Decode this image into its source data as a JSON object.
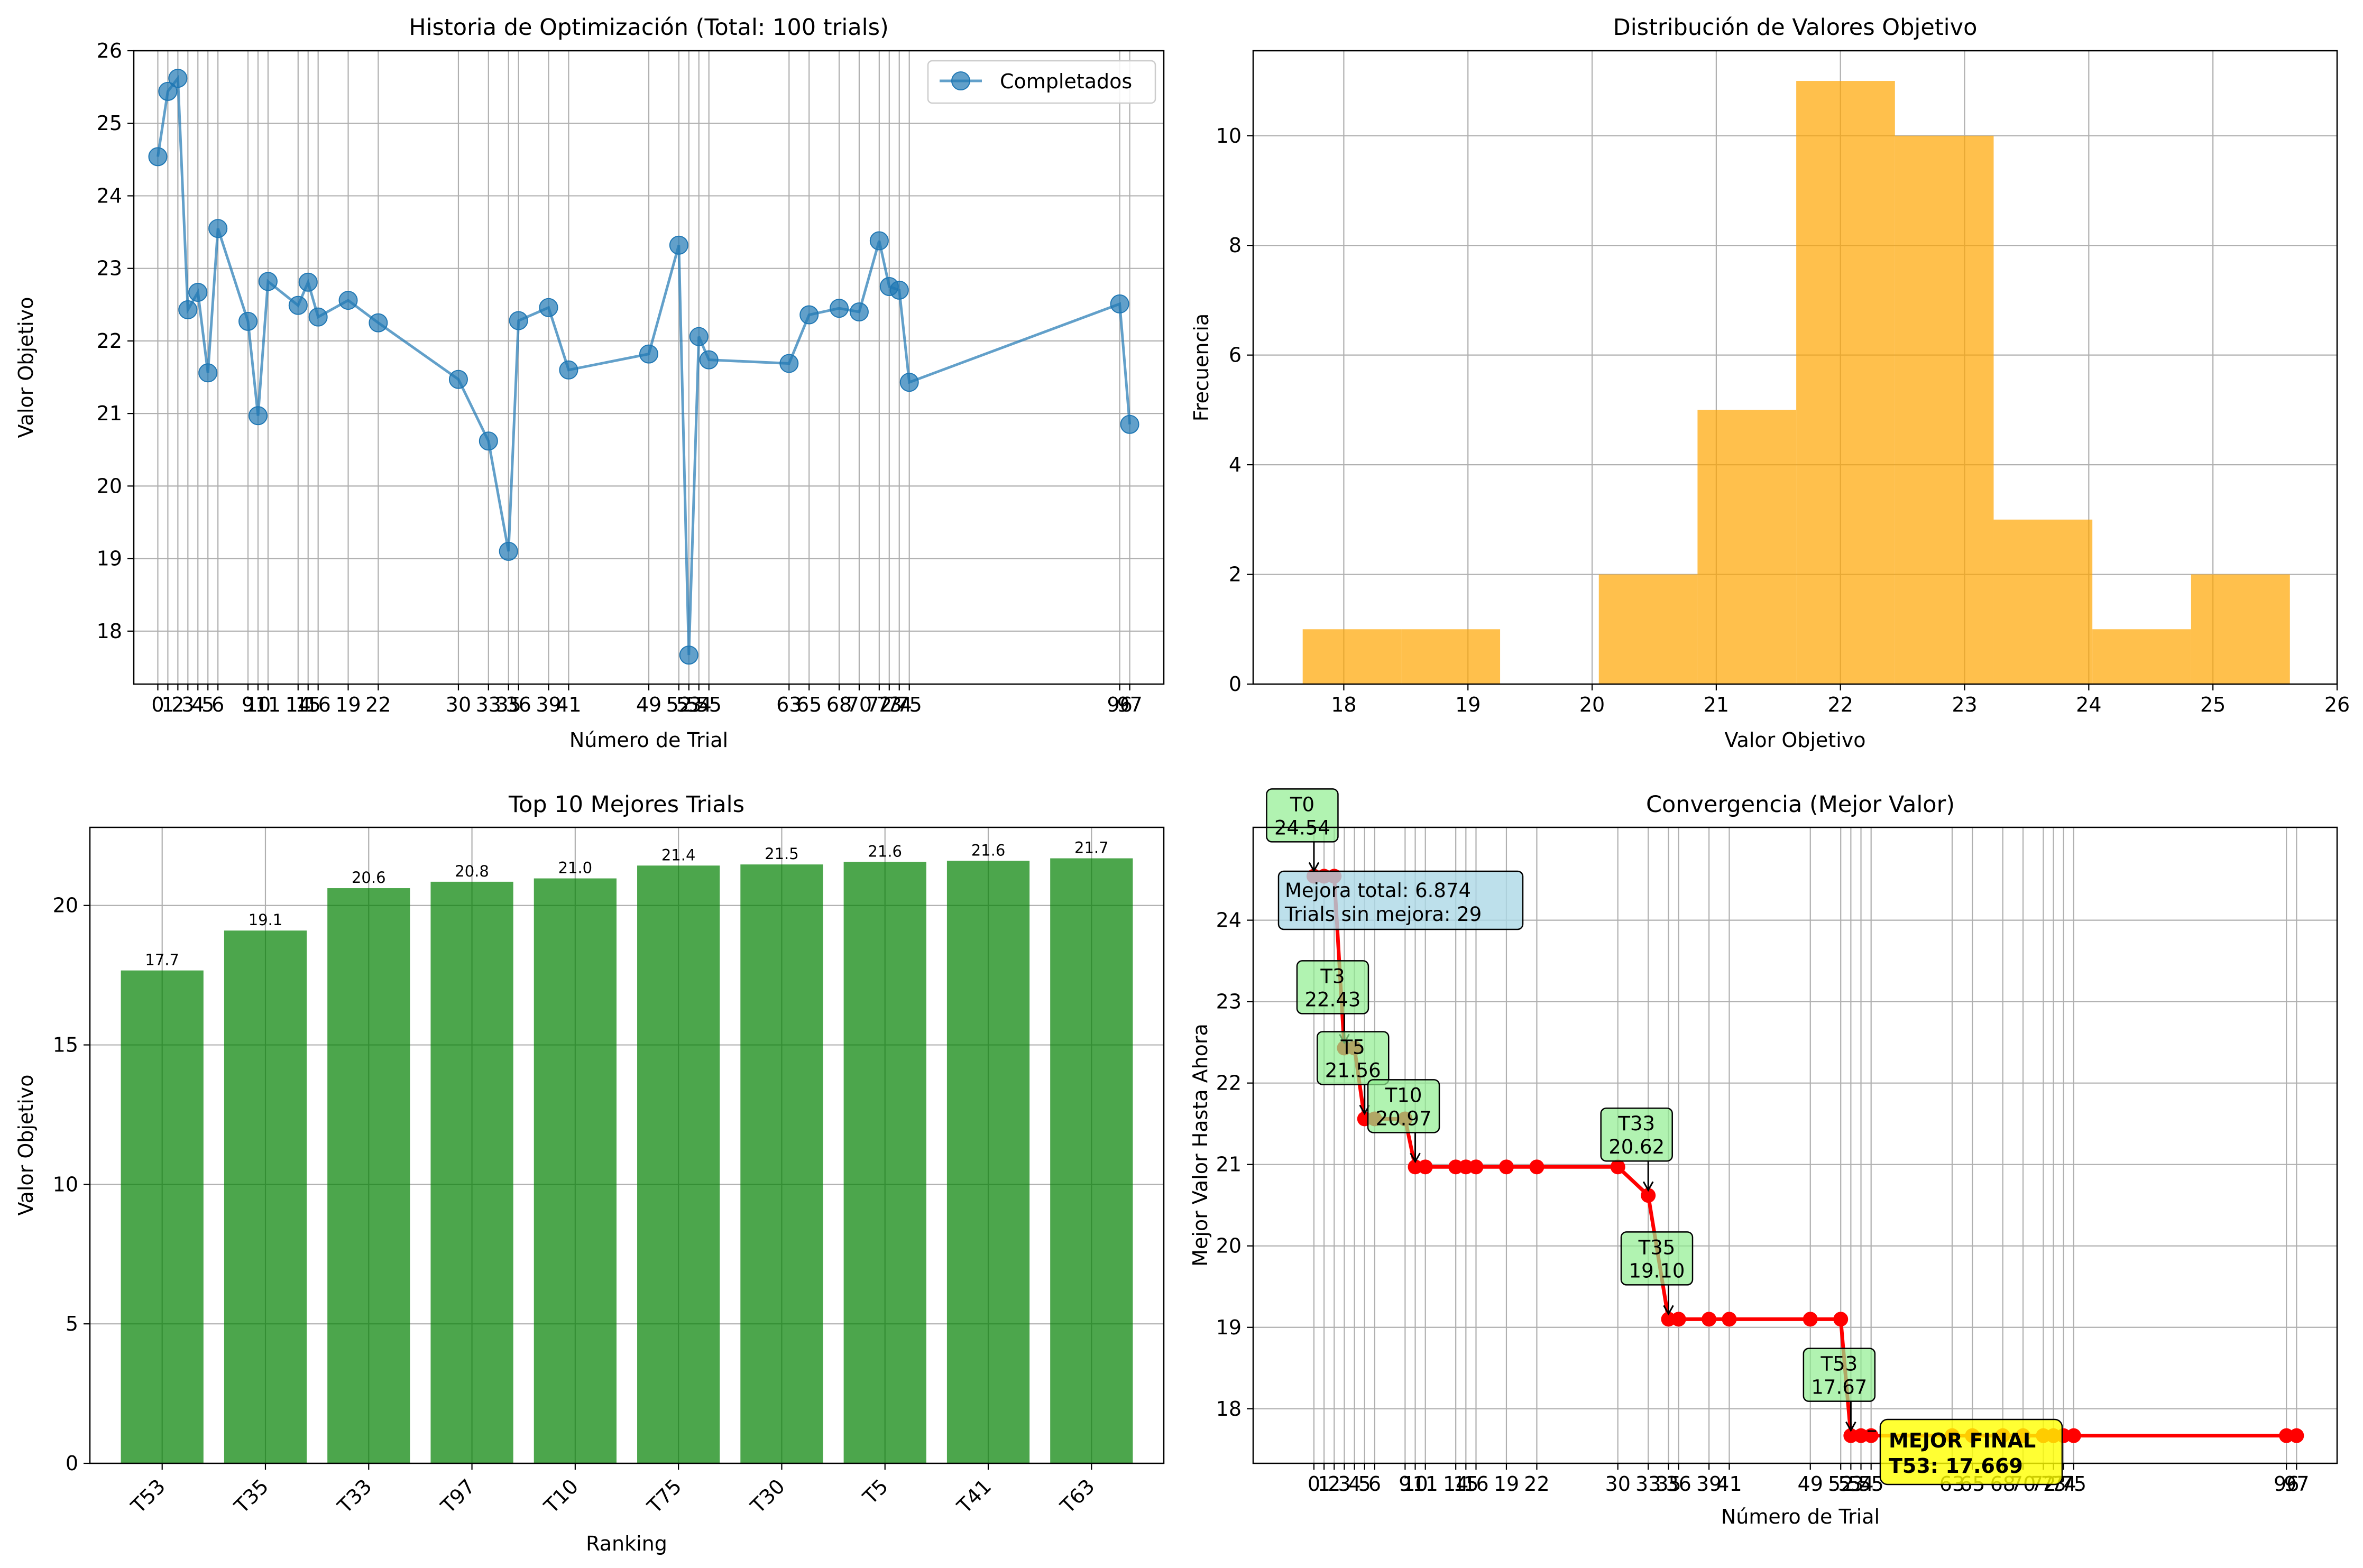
{
  "colors": {
    "history": "#1f77b4",
    "histogram": "#ffa500",
    "top10": "#008000",
    "convergence": "#ff0000",
    "grid": "#b0b0b0",
    "info_box": "#add8e6",
    "improve_box": "#90ee90",
    "final_box": "#ffff00"
  },
  "chart_data": [
    {
      "type": "line",
      "title": "Historia de Optimización (Total: 100 trials)",
      "xlabel": "Número de Trial",
      "ylabel": "Valor Objetivo",
      "xlim": [
        -2.4,
        100.4
      ],
      "ylim": [
        17.27,
        26.0
      ],
      "yticks": [
        18,
        19,
        20,
        21,
        22,
        23,
        24,
        25,
        26
      ],
      "xticks": [
        0,
        1,
        2,
        3,
        4,
        5,
        6,
        9,
        10,
        11,
        14,
        15,
        16,
        19,
        22,
        30,
        33,
        35,
        36,
        39,
        41,
        49,
        52,
        53,
        54,
        55,
        63,
        65,
        68,
        70,
        72,
        73,
        74,
        75,
        96,
        97
      ],
      "legend": {
        "label": "Completados",
        "position": "upper right"
      },
      "grid": true,
      "series": [
        {
          "name": "Completados",
          "x": [
            0,
            1,
            2,
            3,
            4,
            5,
            6,
            9,
            10,
            11,
            14,
            15,
            16,
            19,
            22,
            30,
            33,
            35,
            36,
            39,
            41,
            49,
            52,
            53,
            54,
            55,
            63,
            65,
            68,
            70,
            72,
            73,
            74,
            75,
            96,
            97
          ],
          "values": [
            24.54,
            25.44,
            25.62,
            22.43,
            22.67,
            21.56,
            23.55,
            22.27,
            20.97,
            22.82,
            22.49,
            22.81,
            22.33,
            22.56,
            22.25,
            21.47,
            20.62,
            19.1,
            22.28,
            22.46,
            21.6,
            21.82,
            23.32,
            17.67,
            22.06,
            21.74,
            21.69,
            22.36,
            22.45,
            22.4,
            23.38,
            22.75,
            22.7,
            21.43,
            22.51,
            20.85
          ]
        }
      ]
    },
    {
      "type": "bar",
      "title": "Distribución de Valores Objetivo",
      "xlabel": "Valor Objetivo",
      "ylabel": "Frecuencia",
      "xlim": [
        17.27,
        26.0
      ],
      "ylim": [
        0,
        11.55
      ],
      "xticks": [
        18,
        19,
        20,
        21,
        22,
        23,
        24,
        25,
        26
      ],
      "yticks": [
        0,
        2,
        4,
        6,
        8,
        10
      ],
      "grid": true,
      "bin_edges": [
        17.669,
        18.464,
        19.259,
        20.054,
        20.849,
        21.644,
        22.439,
        23.234,
        24.029,
        24.824,
        25.62
      ],
      "values": [
        1,
        1,
        0,
        2,
        5,
        11,
        10,
        3,
        1,
        2
      ]
    },
    {
      "type": "bar",
      "title": "Top 10 Mejores Trials",
      "xlabel": "Ranking",
      "ylabel": "Valor Objetivo",
      "ylim": [
        0,
        22.8
      ],
      "yticks": [
        0,
        5,
        10,
        15,
        20
      ],
      "grid": true,
      "categories": [
        "T53",
        "T35",
        "T33",
        "T97",
        "T10",
        "T75",
        "T30",
        "T5",
        "T41",
        "T63"
      ],
      "values": [
        17.67,
        19.1,
        20.62,
        20.85,
        20.97,
        21.43,
        21.47,
        21.56,
        21.6,
        21.69
      ],
      "labels": [
        "17.7",
        "19.1",
        "20.6",
        "20.8",
        "21.0",
        "21.4",
        "21.5",
        "21.6",
        "21.6",
        "21.7"
      ]
    },
    {
      "type": "line",
      "title": "Convergencia (Mejor Valor)",
      "xlabel": "Número de Trial",
      "ylabel": "Mejor Valor Hasta Ahora",
      "xlim": [
        -6.0,
        101.0
      ],
      "ylim": [
        17.33,
        25.14
      ],
      "yticks": [
        18,
        19,
        20,
        21,
        22,
        23,
        24
      ],
      "xticks": [
        0,
        1,
        2,
        3,
        4,
        5,
        6,
        9,
        10,
        11,
        14,
        15,
        16,
        19,
        22,
        30,
        33,
        35,
        36,
        39,
        41,
        49,
        52,
        53,
        54,
        55,
        63,
        65,
        68,
        70,
        72,
        73,
        74,
        75,
        96,
        97
      ],
      "grid": true,
      "series": [
        {
          "name": "",
          "x": [
            0,
            1,
            2,
            3,
            4,
            5,
            6,
            9,
            10,
            11,
            14,
            15,
            16,
            19,
            22,
            30,
            33,
            35,
            36,
            39,
            41,
            49,
            52,
            53,
            54,
            55,
            63,
            65,
            68,
            70,
            72,
            73,
            74,
            75,
            96,
            97
          ],
          "values": [
            24.54,
            24.54,
            24.54,
            22.43,
            22.43,
            21.56,
            21.56,
            21.56,
            20.97,
            20.97,
            20.97,
            20.97,
            20.97,
            20.97,
            20.97,
            20.97,
            20.62,
            19.1,
            19.1,
            19.1,
            19.1,
            19.1,
            19.1,
            17.67,
            17.67,
            17.67,
            17.67,
            17.67,
            17.67,
            17.67,
            17.67,
            17.67,
            17.67,
            17.67,
            17.67,
            17.67
          ]
        }
      ],
      "annotations": [
        {
          "trial": 0,
          "value": 24.54,
          "label": "T0",
          "value_label": "24.54"
        },
        {
          "trial": 3,
          "value": 22.43,
          "label": "T3",
          "value_label": "22.43"
        },
        {
          "trial": 5,
          "value": 21.56,
          "label": "T5",
          "value_label": "21.56"
        },
        {
          "trial": 10,
          "value": 20.97,
          "label": "T10",
          "value_label": "20.97"
        },
        {
          "trial": 33,
          "value": 20.62,
          "label": "T33",
          "value_label": "20.62"
        },
        {
          "trial": 35,
          "value": 19.1,
          "label": "T35",
          "value_label": "19.10"
        },
        {
          "trial": 53,
          "value": 17.67,
          "label": "T53",
          "value_label": "17.67"
        }
      ],
      "info_box": {
        "line1": "Mejora total: 6.874",
        "line2": "Trials sin mejora: 29"
      },
      "final_box": {
        "line1": "MEJOR FINAL",
        "line2": "T53: 17.669"
      }
    }
  ]
}
